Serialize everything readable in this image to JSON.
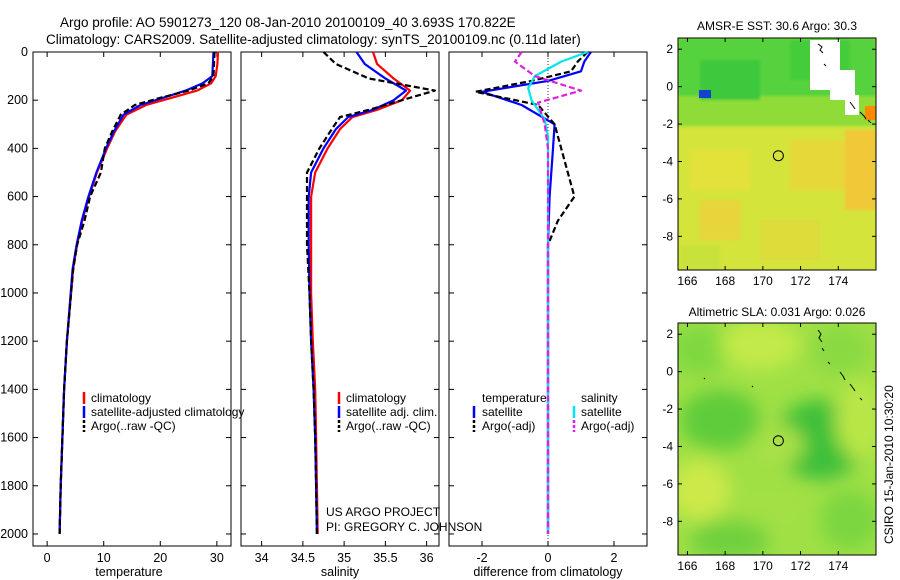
{
  "header": {
    "line1": "Argo profile: AO 5901273_120 08-Jan-2010 20100109_40 3.693S 170.822E",
    "line2": "Climatology: CARS2009. Satellite-adjusted climatology: synTS_20100109.nc (0.11d later)"
  },
  "side_label": "CSIRO 15-Jan-2010 10:30:20",
  "credits": {
    "line1": "US ARGO PROJECT",
    "line2": "PI: GREGORY C. JOHNSON"
  },
  "colors": {
    "climatology": "#ff0000",
    "satellite": "#0000ff",
    "argo": "#000000",
    "salinity_sat": "#00e5ee",
    "salinity_argo": "#e020e0"
  },
  "chart_data": [
    {
      "type": "line",
      "id": "temperature",
      "xlabel": "temperature",
      "ylabel": "",
      "xlim": [
        -2.5,
        32.5
      ],
      "ylim": [
        2050,
        0
      ],
      "xticks": [
        0,
        10,
        20,
        30
      ],
      "yticks": [
        0,
        200,
        400,
        600,
        800,
        1000,
        1200,
        1400,
        1600,
        1800,
        2000
      ],
      "legend": [
        "climatology",
        "satellite-adjusted climatology",
        "Argo(..raw -QC)"
      ],
      "series": [
        {
          "name": "climatology",
          "color": "#ff0000",
          "dashed": false,
          "x": [
            30.2,
            30.1,
            29.8,
            29.0,
            26.5,
            22.0,
            17.5,
            14.0,
            12.0,
            10.6,
            8.8,
            7.4,
            6.2,
            5.3,
            4.6,
            3.5,
            3.0,
            2.7,
            2.4,
            2.2
          ],
          "y": [
            0,
            50,
            100,
            130,
            160,
            190,
            220,
            260,
            330,
            400,
            500,
            600,
            700,
            800,
            900,
            1200,
            1400,
            1600,
            1800,
            2000
          ]
        },
        {
          "name": "satellite-adjusted climatology",
          "color": "#0000ff",
          "dashed": false,
          "x": [
            29.4,
            29.3,
            29.2,
            27.5,
            24.5,
            20.5,
            16.5,
            13.5,
            11.8,
            10.4,
            8.7,
            7.3,
            6.1,
            5.2,
            4.5,
            3.5,
            3.0,
            2.7,
            2.4,
            2.2
          ],
          "y": [
            0,
            50,
            100,
            130,
            160,
            190,
            220,
            260,
            330,
            400,
            500,
            600,
            700,
            800,
            900,
            1200,
            1400,
            1600,
            1800,
            2000
          ]
        },
        {
          "name": "Argo(..raw -QC)",
          "color": "#000000",
          "dashed": true,
          "x": [
            29.6,
            29.5,
            29.4,
            28.5,
            25.0,
            20.0,
            15.5,
            13.0,
            11.5,
            10.2,
            9.5,
            7.6,
            6.6,
            5.3,
            4.6,
            3.5,
            3.0,
            2.7,
            2.4,
            2.2
          ],
          "y": [
            0,
            50,
            100,
            130,
            160,
            190,
            220,
            260,
            330,
            400,
            500,
            600,
            700,
            800,
            900,
            1200,
            1400,
            1600,
            1800,
            2000
          ]
        }
      ]
    },
    {
      "type": "line",
      "id": "salinity",
      "xlabel": "salinity",
      "ylabel": "",
      "xlim": [
        33.75,
        36.15
      ],
      "ylim": [
        2050,
        0
      ],
      "xticks": [
        34,
        34.5,
        35,
        35.5,
        36
      ],
      "yticks": [
        0,
        200,
        400,
        600,
        800,
        1000,
        1200,
        1400,
        1600,
        1800,
        2000
      ],
      "legend": [
        "climatology",
        "satellite adj. clim.",
        "Argo(..raw -QC)"
      ],
      "series": [
        {
          "name": "climatology",
          "color": "#ff0000",
          "dashed": false,
          "x": [
            35.35,
            35.4,
            35.6,
            35.8,
            35.7,
            35.4,
            35.1,
            34.95,
            34.8,
            34.65,
            34.6,
            34.6,
            34.6,
            34.62,
            34.65,
            34.66,
            34.67,
            34.68
          ],
          "y": [
            0,
            50,
            110,
            160,
            200,
            240,
            270,
            320,
            400,
            500,
            600,
            800,
            1000,
            1200,
            1400,
            1600,
            1800,
            2000
          ]
        },
        {
          "name": "satellite adj. clim.",
          "color": "#0000ff",
          "dashed": false,
          "x": [
            35.15,
            35.25,
            35.5,
            35.75,
            35.6,
            35.35,
            35.05,
            34.9,
            34.75,
            34.6,
            34.57,
            34.57,
            34.58,
            34.6,
            34.63,
            34.65,
            34.66,
            34.67
          ],
          "y": [
            0,
            50,
            110,
            160,
            200,
            240,
            270,
            320,
            400,
            500,
            600,
            800,
            1000,
            1200,
            1400,
            1600,
            1800,
            2000
          ]
        },
        {
          "name": "Argo(..raw -QC)",
          "color": "#000000",
          "dashed": true,
          "x": [
            34.75,
            34.9,
            35.3,
            36.1,
            35.7,
            35.3,
            34.95,
            34.85,
            34.7,
            34.55,
            34.55,
            34.55,
            34.58,
            34.6,
            34.63,
            34.65,
            34.66,
            34.67
          ],
          "y": [
            0,
            50,
            110,
            160,
            200,
            240,
            270,
            320,
            400,
            500,
            600,
            800,
            1000,
            1200,
            1400,
            1600,
            1800,
            2000
          ]
        }
      ]
    },
    {
      "type": "line",
      "id": "difference",
      "xlabel": "difference from climatology",
      "ylabel": "",
      "xlim": [
        -3,
        3
      ],
      "ylim": [
        2050,
        0
      ],
      "xticks": [
        -2,
        0,
        2
      ],
      "yticks": [
        0,
        200,
        400,
        600,
        800,
        1000,
        1200,
        1400,
        1600,
        1800,
        2000
      ],
      "legend_headers": [
        "temperature",
        "salinity"
      ],
      "legend": [
        "satellite",
        "Argo(-adj)",
        "satellite",
        "Argo(-adj)"
      ],
      "series": [
        {
          "name": "temperature satellite",
          "color": "#0000ff",
          "dashed": false,
          "x": [
            1.3,
            1.1,
            1.0,
            0.0,
            -2.0,
            -0.8,
            0.2,
            0.15,
            0.1,
            0.05,
            0.0,
            0.0,
            0.0,
            0.0,
            0.0,
            0.0,
            0.0
          ],
          "y": [
            0,
            40,
            80,
            120,
            165,
            220,
            300,
            400,
            500,
            600,
            800,
            1000,
            1200,
            1400,
            1600,
            1800,
            2000
          ]
        },
        {
          "name": "temperature Argo(-adj)",
          "color": "#000000",
          "dashed": true,
          "x": [
            1.2,
            0.9,
            0.7,
            -0.5,
            -2.2,
            -0.3,
            0.2,
            0.4,
            0.8,
            0.3,
            0.0,
            0.0,
            0.0,
            0.0,
            0.0,
            0.0,
            0.0
          ],
          "y": [
            0,
            40,
            80,
            120,
            165,
            220,
            300,
            400,
            600,
            700,
            800,
            1000,
            1200,
            1400,
            1600,
            1800,
            2000
          ]
        },
        {
          "name": "salinity satellite",
          "color": "#00e5ee",
          "dashed": false,
          "x": [
            1.2,
            0.4,
            -0.4,
            -0.6,
            -0.5,
            -0.1,
            0.0,
            0.0,
            0.0,
            0.0,
            0.0,
            0.0,
            0.0,
            0.0,
            0.0,
            0.0
          ],
          "y": [
            0,
            40,
            100,
            150,
            200,
            280,
            350,
            450,
            600,
            800,
            1000,
            1200,
            1400,
            1600,
            1800,
            2000
          ]
        },
        {
          "name": "salinity Argo(-adj)",
          "color": "#e020e0",
          "dashed": true,
          "x": [
            -0.8,
            -1.0,
            -0.4,
            1.0,
            -0.3,
            -0.1,
            0.0,
            0.0,
            0.0,
            0.0,
            0.0,
            0.0,
            0.0,
            0.0,
            0.0
          ],
          "y": [
            0,
            40,
            100,
            160,
            210,
            300,
            400,
            500,
            600,
            800,
            1000,
            1200,
            1500,
            1800,
            2000
          ]
        }
      ]
    },
    {
      "type": "heatmap",
      "id": "sst_map",
      "title": "AMSR-E SST: 30.6 Argo: 30.3",
      "xlim": [
        165.5,
        176
      ],
      "ylim": [
        -9.8,
        2.6
      ],
      "xticks": [
        166,
        168,
        170,
        172,
        174
      ],
      "yticks": [
        2,
        0,
        -2,
        -4,
        -6,
        -8
      ],
      "marker": {
        "lon": 170.822,
        "lat": -3.693
      }
    },
    {
      "type": "heatmap",
      "id": "sla_map",
      "title": "Altimetric SLA: 0.031 Argo: 0.026",
      "xlim": [
        165.5,
        176
      ],
      "ylim": [
        -9.8,
        2.6
      ],
      "xticks": [
        166,
        168,
        170,
        172,
        174
      ],
      "yticks": [
        2,
        0,
        -2,
        -4,
        -6,
        -8
      ],
      "marker": {
        "lon": 170.822,
        "lat": -3.693
      }
    }
  ]
}
